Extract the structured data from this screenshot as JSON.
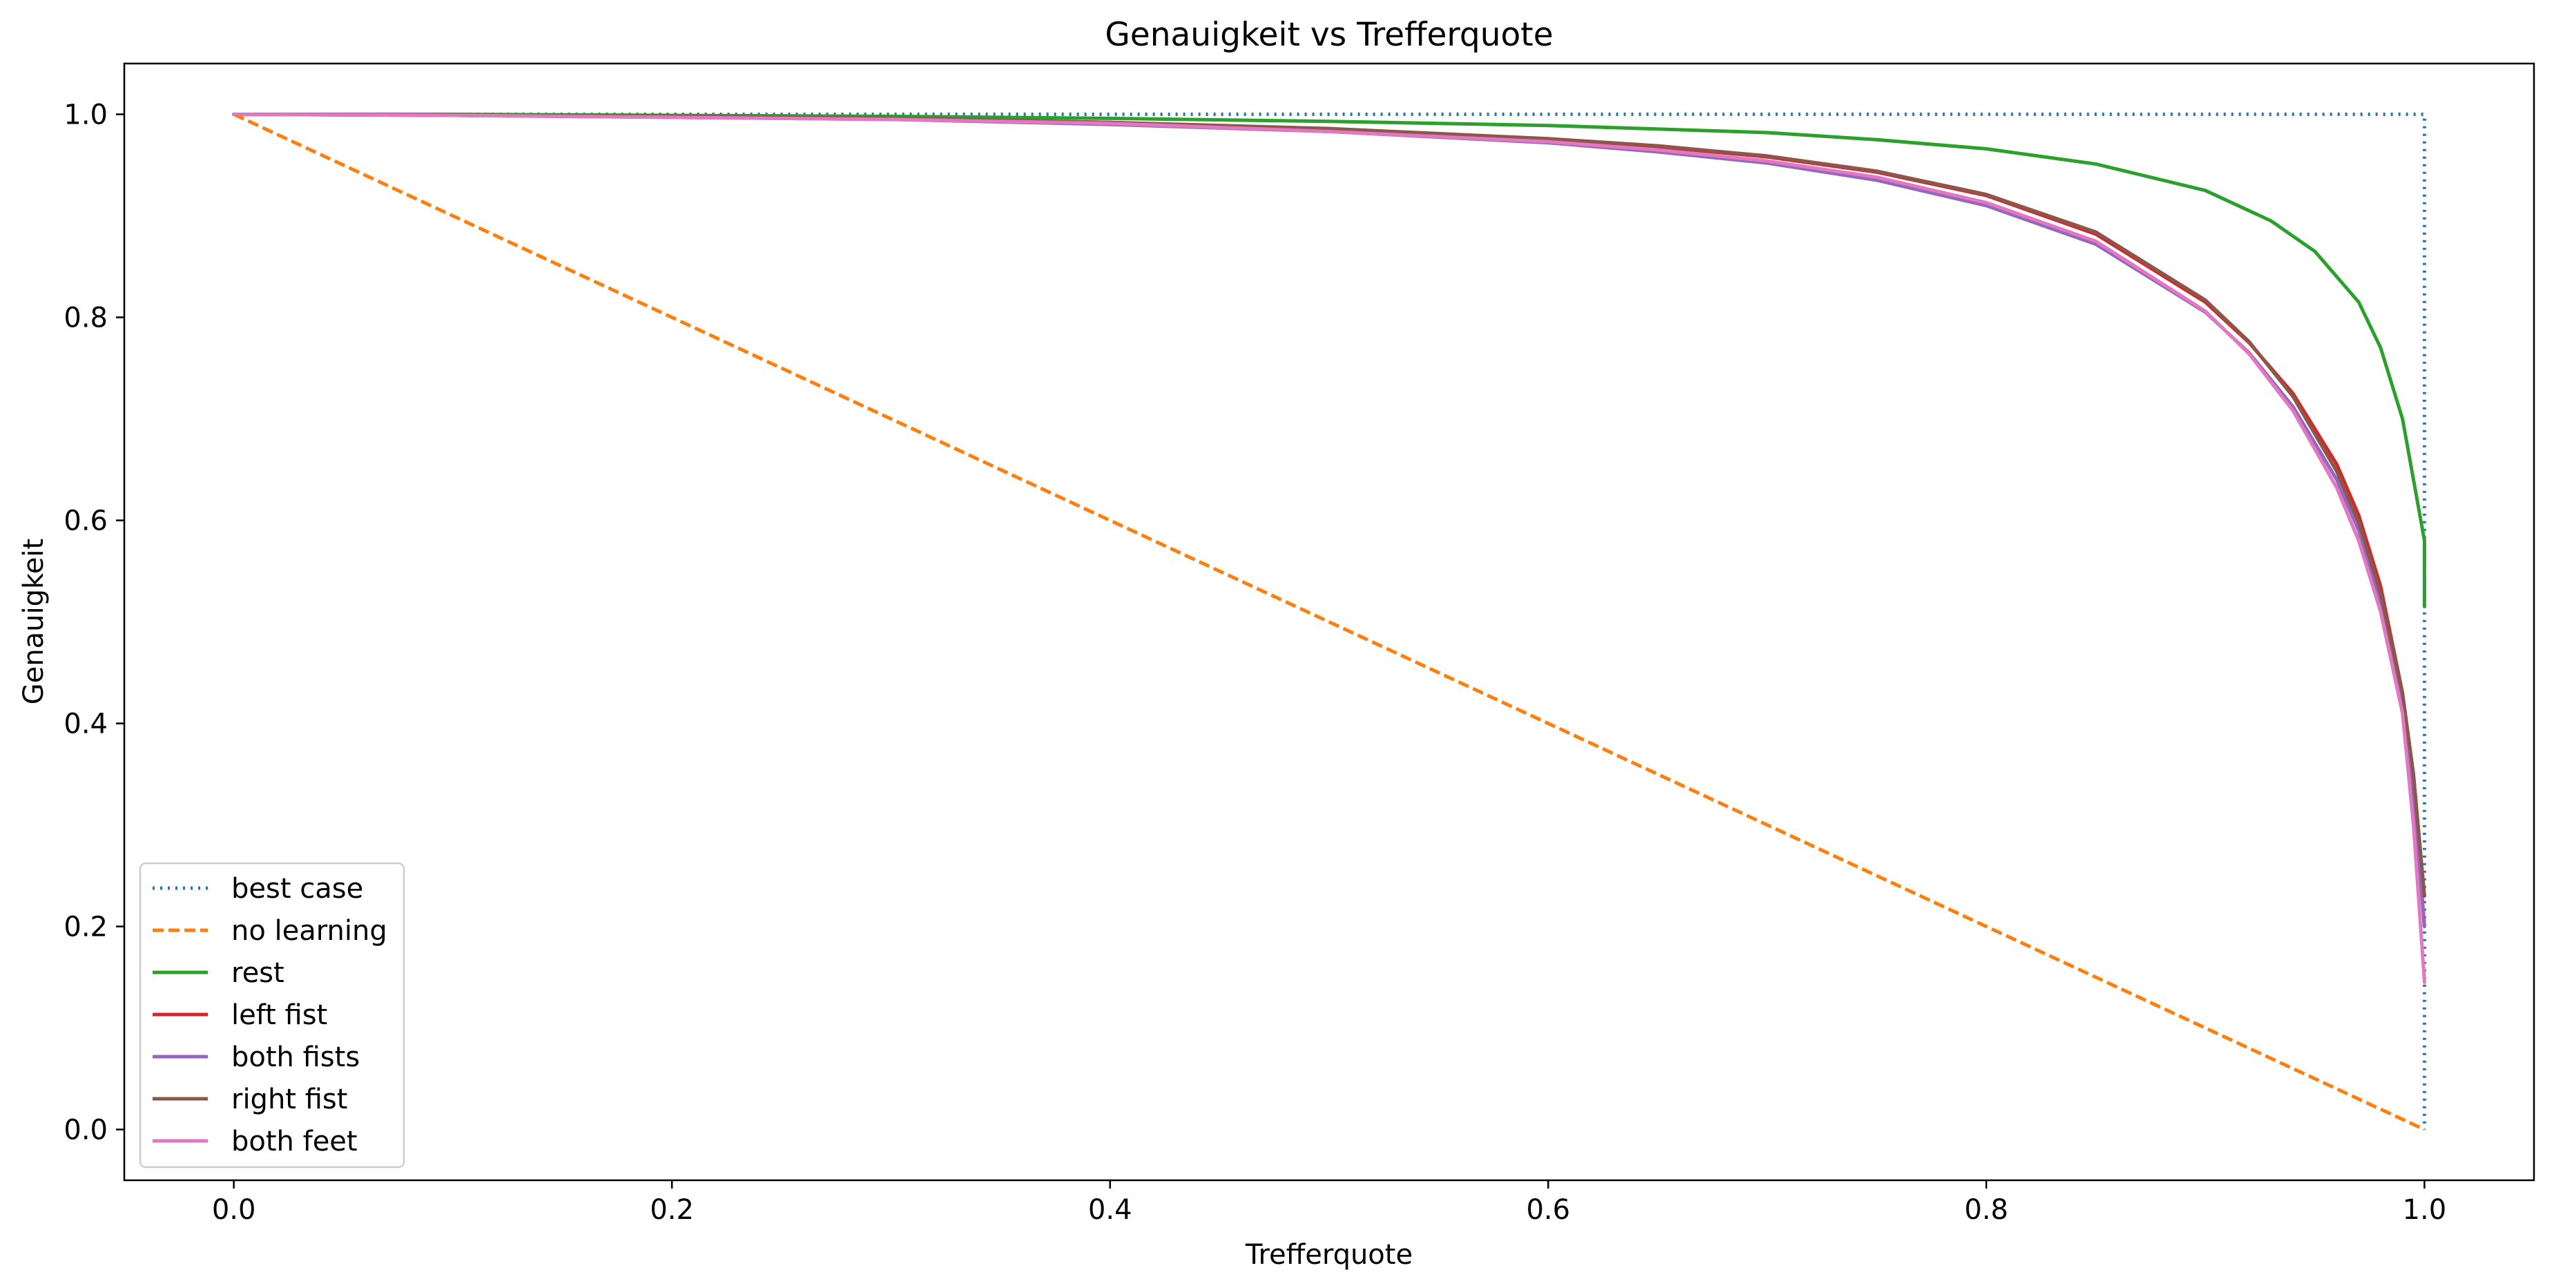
{
  "chart_data": {
    "type": "line",
    "title": "Genauigkeit vs Trefferquote",
    "xlabel": "Trefferquote",
    "ylabel": "Genauigkeit",
    "xlim": [
      -0.05,
      1.05
    ],
    "ylim": [
      -0.05,
      1.05
    ],
    "x_ticks": [
      "0.0",
      "0.2",
      "0.4",
      "0.6",
      "0.8",
      "1.0"
    ],
    "y_ticks": [
      "0.0",
      "0.2",
      "0.4",
      "0.6",
      "0.8",
      "1.0"
    ],
    "grid": false,
    "legend_position": "lower-left",
    "series": [
      {
        "name": "best case",
        "color": "#1f77b4",
        "style": "dotted",
        "x": [
          0,
          1,
          1
        ],
        "y": [
          1,
          1,
          0
        ]
      },
      {
        "name": "no learning",
        "color": "#ff7f0e",
        "style": "dashed",
        "x": [
          0,
          1
        ],
        "y": [
          1,
          0
        ]
      },
      {
        "name": "rest",
        "color": "#2ca02c",
        "style": "solid",
        "x": [
          0,
          0.1,
          0.2,
          0.3,
          0.4,
          0.5,
          0.6,
          0.7,
          0.75,
          0.8,
          0.85,
          0.9,
          0.93,
          0.95,
          0.97,
          0.98,
          0.99,
          0.995,
          1.0,
          1.0
        ],
        "y": [
          1.0,
          1.0,
          0.999,
          0.998,
          0.996,
          0.993,
          0.989,
          0.982,
          0.975,
          0.966,
          0.951,
          0.925,
          0.895,
          0.865,
          0.815,
          0.77,
          0.7,
          0.64,
          0.58,
          0.515
        ]
      },
      {
        "name": "left fist",
        "color": "#d62728",
        "style": "solid",
        "x": [
          0,
          0.1,
          0.2,
          0.3,
          0.4,
          0.5,
          0.6,
          0.65,
          0.7,
          0.75,
          0.8,
          0.85,
          0.9,
          0.92,
          0.94,
          0.96,
          0.97,
          0.98,
          0.99,
          0.995,
          1.0
        ],
        "y": [
          1.0,
          0.999,
          0.998,
          0.996,
          0.992,
          0.985,
          0.975,
          0.968,
          0.958,
          0.943,
          0.92,
          0.882,
          0.815,
          0.775,
          0.725,
          0.655,
          0.605,
          0.535,
          0.43,
          0.34,
          0.2
        ]
      },
      {
        "name": "both fists",
        "color": "#9467bd",
        "style": "solid",
        "x": [
          0,
          0.1,
          0.2,
          0.3,
          0.4,
          0.5,
          0.6,
          0.65,
          0.7,
          0.75,
          0.8,
          0.85,
          0.9,
          0.92,
          0.94,
          0.96,
          0.97,
          0.98,
          0.99,
          0.995,
          1.0
        ],
        "y": [
          1.0,
          0.999,
          0.997,
          0.995,
          0.99,
          0.983,
          0.972,
          0.963,
          0.952,
          0.935,
          0.91,
          0.872,
          0.805,
          0.765,
          0.712,
          0.64,
          0.59,
          0.52,
          0.42,
          0.33,
          0.2
        ]
      },
      {
        "name": "right fist",
        "color": "#8c564b",
        "style": "solid",
        "x": [
          0,
          0.1,
          0.2,
          0.3,
          0.4,
          0.5,
          0.6,
          0.65,
          0.7,
          0.75,
          0.8,
          0.85,
          0.9,
          0.92,
          0.94,
          0.96,
          0.97,
          0.98,
          0.99,
          0.995,
          1.0
        ],
        "y": [
          1.0,
          0.999,
          0.998,
          0.996,
          0.992,
          0.986,
          0.976,
          0.969,
          0.959,
          0.944,
          0.921,
          0.884,
          0.817,
          0.776,
          0.722,
          0.648,
          0.598,
          0.528,
          0.43,
          0.35,
          0.23
        ]
      },
      {
        "name": "both feet",
        "color": "#e377c2",
        "style": "solid",
        "x": [
          0,
          0.1,
          0.2,
          0.3,
          0.4,
          0.5,
          0.6,
          0.65,
          0.7,
          0.75,
          0.8,
          0.85,
          0.9,
          0.92,
          0.94,
          0.96,
          0.97,
          0.98,
          0.99,
          0.995,
          1.0
        ],
        "y": [
          1.0,
          0.999,
          0.997,
          0.995,
          0.991,
          0.983,
          0.973,
          0.965,
          0.954,
          0.938,
          0.913,
          0.875,
          0.806,
          0.764,
          0.708,
          0.632,
          0.58,
          0.51,
          0.41,
          0.3,
          0.145
        ]
      }
    ]
  }
}
